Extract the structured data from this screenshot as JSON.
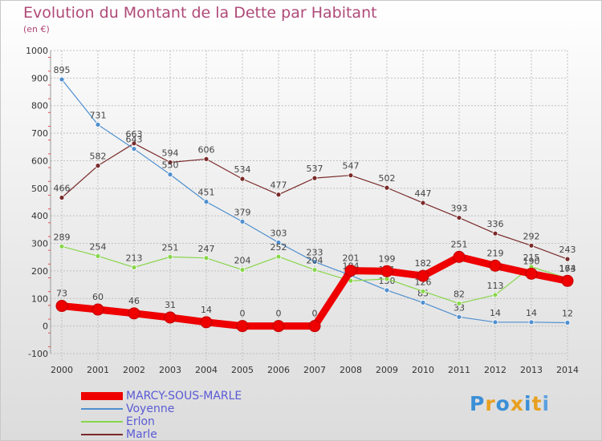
{
  "title": "Evolution du Montant de la Dette par Habitant",
  "subtitle": "(en €)",
  "logo_text": "Proxiti",
  "chart_data": {
    "type": "line",
    "title": "Evolution du Montant de la Dette par Habitant",
    "subtitle": "(en €)",
    "x": [
      "2000",
      "2001",
      "2002",
      "2003",
      "2004",
      "2005",
      "2006",
      "2007",
      "2008",
      "2009",
      "2010",
      "2011",
      "2012",
      "2013",
      "2014"
    ],
    "yticks": [
      "-100",
      "0",
      "100",
      "200",
      "300",
      "400",
      "500",
      "600",
      "700",
      "800",
      "900",
      "1000"
    ],
    "ylim": [
      -100,
      1000
    ],
    "grid": true,
    "legend_position": "bottom-left",
    "series": [
      {
        "name": "Marle",
        "color": "#7a2a2a",
        "values": [
          466,
          582,
          663,
          594,
          606,
          534,
          477,
          537,
          547,
          502,
          447,
          393,
          336,
          292,
          243
        ],
        "labels": [
          "466",
          "582",
          "663",
          "594",
          "606",
          "534",
          "477",
          "537",
          "547",
          "502",
          "447",
          "393",
          "336",
          "292",
          "243"
        ]
      },
      {
        "name": "Voyenne",
        "color": "#4f8fcf",
        "values": [
          895,
          731,
          643,
          550,
          451,
          379,
          303,
          233,
          184,
          130,
          85,
          33,
          14,
          14,
          12
        ],
        "labels": [
          "895",
          "731",
          "643",
          "550",
          "451",
          "379",
          "303",
          "233",
          "184",
          "130",
          "85",
          "33",
          "14",
          "14",
          "12"
        ]
      },
      {
        "name": "Erlon",
        "color": "#88d64a",
        "values": [
          289,
          254,
          213,
          251,
          247,
          204,
          252,
          204,
          164,
          171,
          126,
          82,
          113,
          215,
          173
        ],
        "labels": [
          "289",
          "254",
          "213",
          "251",
          "247",
          "204",
          "252",
          "204",
          "164",
          "171",
          "126",
          "82",
          "113",
          "215",
          "173"
        ]
      },
      {
        "name": "MARCY-SOUS-MARLE",
        "color": "#ee0000",
        "values": [
          73,
          60,
          46,
          31,
          14,
          0,
          0,
          0,
          201,
          199,
          182,
          251,
          219,
          190,
          164
        ],
        "labels": [
          "73",
          "60",
          "46",
          "31",
          "14",
          "0",
          "0",
          "0",
          "201",
          "199",
          "182",
          "251",
          "219",
          "190",
          "164"
        ]
      }
    ]
  },
  "legend": [
    {
      "name": "MARCY-SOUS-MARLE",
      "color": "#ee0000",
      "thick": true
    },
    {
      "name": "Voyenne",
      "color": "#4f8fcf",
      "thick": false
    },
    {
      "name": "Erlon",
      "color": "#88d64a",
      "thick": false
    },
    {
      "name": "Marle",
      "color": "#7a2a2a",
      "thick": false
    }
  ]
}
